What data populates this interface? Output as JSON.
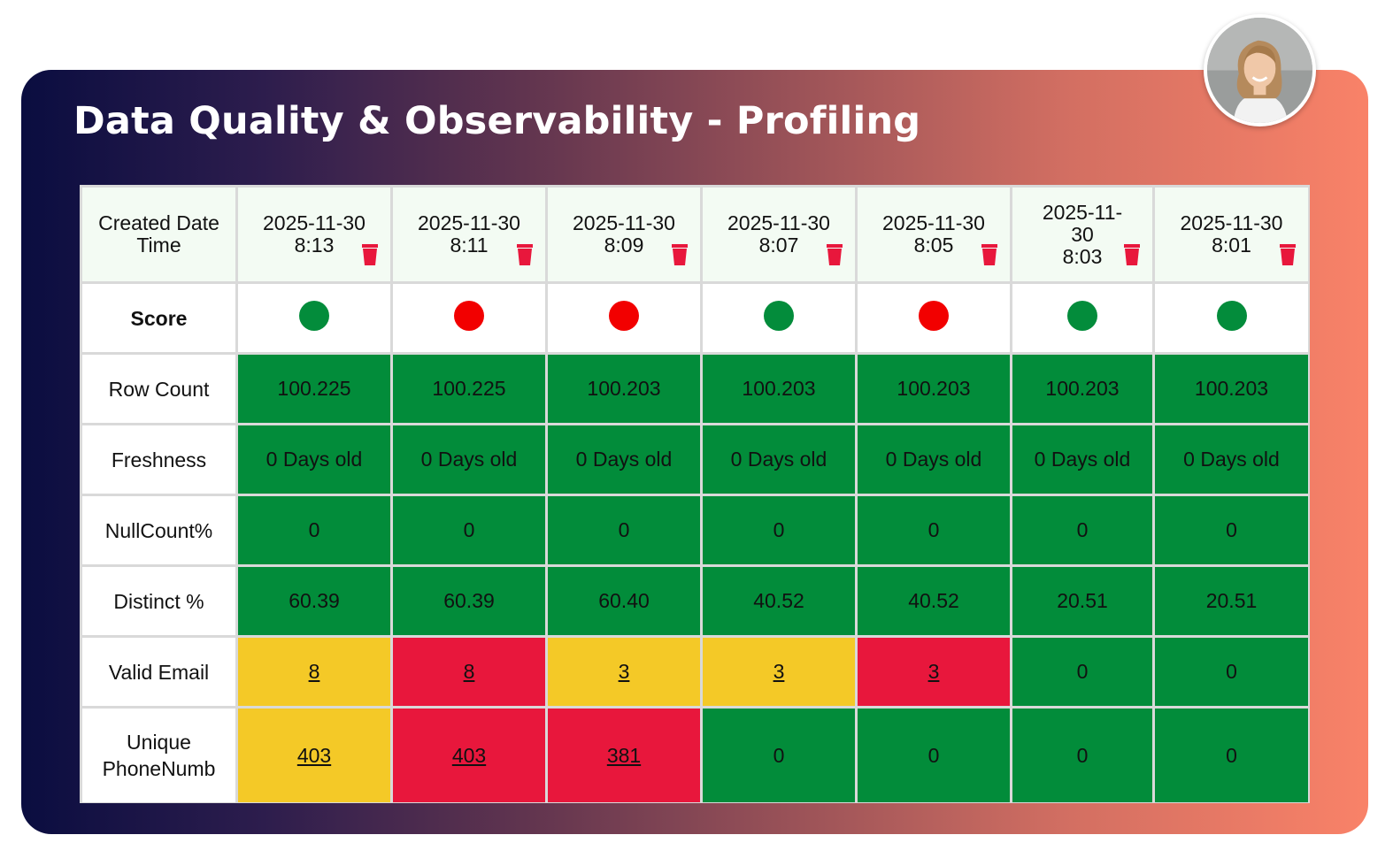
{
  "title": "Data Quality & Observability - Profiling",
  "colors": {
    "green": "#028c3a",
    "red": "#e8173c",
    "yellow": "#f4c927",
    "score_green": "#038c3b",
    "score_red": "#f20000",
    "trash": "#e8173c"
  },
  "table": {
    "header_label": "Created Date Time",
    "columns": [
      {
        "date": "2025-11-30",
        "time": "8:13",
        "icon": "trash-icon"
      },
      {
        "date": "2025-11-30",
        "time": "8:11",
        "icon": "trash-icon"
      },
      {
        "date": "2025-11-30",
        "time": "8:09",
        "icon": "trash-icon"
      },
      {
        "date": "2025-11-30",
        "time": "8:07",
        "icon": "trash-icon"
      },
      {
        "date": "2025-11-30",
        "time": "8:05",
        "icon": "trash-icon"
      },
      {
        "date": "2025-11-30",
        "time": "8:03",
        "icon": "trash-icon"
      },
      {
        "date": "2025-11-30",
        "time": "8:01",
        "icon": "trash-icon"
      }
    ],
    "score": {
      "label": "Score",
      "values": [
        "green",
        "red",
        "red",
        "green",
        "red",
        "green",
        "green"
      ]
    },
    "rows": [
      {
        "label": "Row Count",
        "cells": [
          {
            "v": "100.225",
            "c": "green"
          },
          {
            "v": "100.225",
            "c": "green"
          },
          {
            "v": "100.203",
            "c": "green"
          },
          {
            "v": "100.203",
            "c": "green"
          },
          {
            "v": "100.203",
            "c": "green"
          },
          {
            "v": "100.203",
            "c": "green"
          },
          {
            "v": "100.203",
            "c": "green"
          }
        ]
      },
      {
        "label": "Freshness",
        "cells": [
          {
            "v": "0 Days old",
            "c": "green"
          },
          {
            "v": "0 Days old",
            "c": "green"
          },
          {
            "v": "0 Days old",
            "c": "green"
          },
          {
            "v": "0 Days old",
            "c": "green"
          },
          {
            "v": "0 Days old",
            "c": "green"
          },
          {
            "v": "0 Days old",
            "c": "green"
          },
          {
            "v": "0 Days old",
            "c": "green"
          }
        ]
      },
      {
        "label": "NullCount%",
        "cells": [
          {
            "v": "0",
            "c": "green"
          },
          {
            "v": "0",
            "c": "green"
          },
          {
            "v": "0",
            "c": "green"
          },
          {
            "v": "0",
            "c": "green"
          },
          {
            "v": "0",
            "c": "green"
          },
          {
            "v": "0",
            "c": "green"
          },
          {
            "v": "0",
            "c": "green"
          }
        ]
      },
      {
        "label": "Distinct %",
        "cells": [
          {
            "v": "60.39",
            "c": "green"
          },
          {
            "v": "60.39",
            "c": "green"
          },
          {
            "v": "60.40",
            "c": "green"
          },
          {
            "v": "40.52",
            "c": "green"
          },
          {
            "v": "40.52",
            "c": "green"
          },
          {
            "v": "20.51",
            "c": "green"
          },
          {
            "v": "20.51",
            "c": "green"
          }
        ]
      },
      {
        "label": "Valid Email",
        "cells": [
          {
            "v": "8",
            "c": "yellow",
            "link": true
          },
          {
            "v": "8",
            "c": "red",
            "link": true
          },
          {
            "v": "3",
            "c": "yellow",
            "link": true
          },
          {
            "v": "3",
            "c": "yellow",
            "link": true
          },
          {
            "v": "3",
            "c": "red",
            "link": true
          },
          {
            "v": "0",
            "c": "green",
            "light": true
          },
          {
            "v": "0",
            "c": "green",
            "light": true
          }
        ]
      },
      {
        "label": "Unique PhoneNumb",
        "cells": [
          {
            "v": "403",
            "c": "yellow",
            "link": true
          },
          {
            "v": "403",
            "c": "red",
            "link": true
          },
          {
            "v": "381",
            "c": "red",
            "link": true
          },
          {
            "v": "0",
            "c": "green",
            "light": true
          },
          {
            "v": "0",
            "c": "green",
            "light": true
          },
          {
            "v": "0",
            "c": "green",
            "light": true
          },
          {
            "v": "0",
            "c": "green",
            "light": true
          }
        ]
      }
    ]
  }
}
